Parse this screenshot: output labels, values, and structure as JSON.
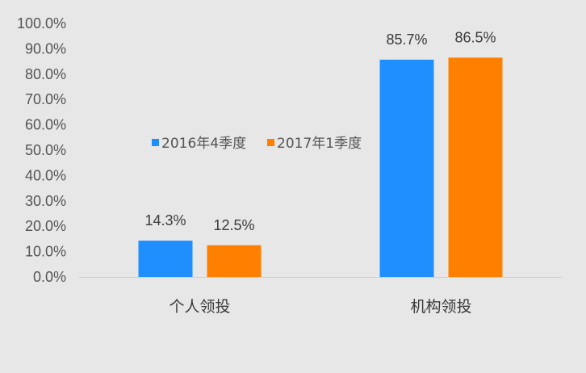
{
  "chart_data": {
    "type": "bar",
    "categories": [
      "个人领投",
      "机构领投"
    ],
    "series": [
      {
        "name": "2016年4季度",
        "values": [
          14.3,
          85.7
        ],
        "labels": [
          "14.3%",
          "85.7%"
        ],
        "color": "#1f8fff"
      },
      {
        "name": "2017年1季度",
        "values": [
          12.5,
          86.5
        ],
        "labels": [
          "12.5%",
          "86.5%"
        ],
        "color": "#ff8000"
      }
    ],
    "ylim": [
      0,
      100
    ],
    "y_ticks": [
      "0.0%",
      "10.0%",
      "20.0%",
      "30.0%",
      "40.0%",
      "50.0%",
      "60.0%",
      "70.0%",
      "80.0%",
      "90.0%",
      "100.0%"
    ],
    "grid": false,
    "legend_position": "center-top"
  }
}
